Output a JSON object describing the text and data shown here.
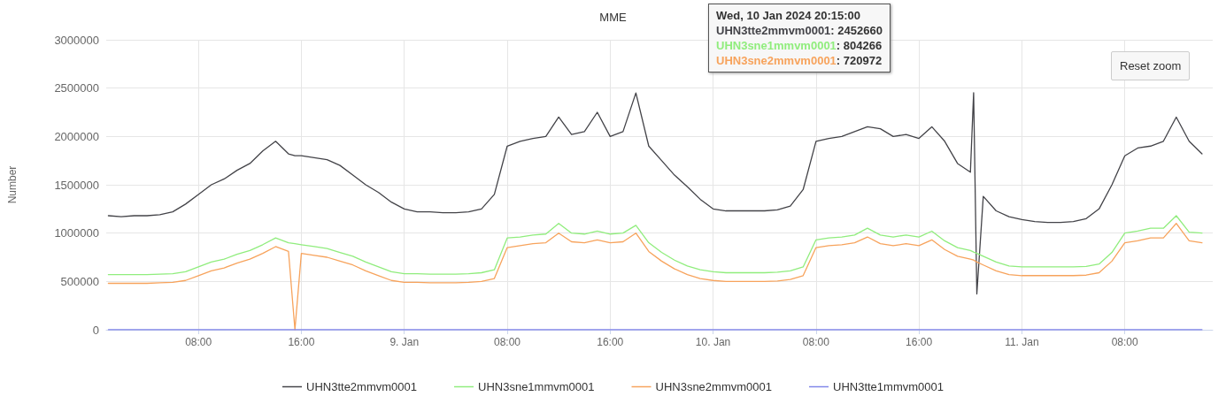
{
  "chart_data": {
    "type": "line",
    "title": "MME",
    "ylabel": "Number",
    "x": [
      "2024-01-08T01:00",
      "2024-01-08T02:00",
      "2024-01-08T03:00",
      "2024-01-08T04:00",
      "2024-01-08T05:00",
      "2024-01-08T06:00",
      "2024-01-08T07:00",
      "2024-01-08T08:00",
      "2024-01-08T09:00",
      "2024-01-08T10:00",
      "2024-01-08T11:00",
      "2024-01-08T12:00",
      "2024-01-08T13:00",
      "2024-01-08T14:00",
      "2024-01-08T15:00",
      "2024-01-08T15:30",
      "2024-01-08T16:00",
      "2024-01-08T17:00",
      "2024-01-08T18:00",
      "2024-01-08T19:00",
      "2024-01-08T20:00",
      "2024-01-08T21:00",
      "2024-01-08T22:00",
      "2024-01-08T23:00",
      "2024-01-09T00:00",
      "2024-01-09T01:00",
      "2024-01-09T02:00",
      "2024-01-09T03:00",
      "2024-01-09T04:00",
      "2024-01-09T05:00",
      "2024-01-09T06:00",
      "2024-01-09T07:00",
      "2024-01-09T08:00",
      "2024-01-09T09:00",
      "2024-01-09T10:00",
      "2024-01-09T11:00",
      "2024-01-09T12:00",
      "2024-01-09T13:00",
      "2024-01-09T14:00",
      "2024-01-09T15:00",
      "2024-01-09T16:00",
      "2024-01-09T17:00",
      "2024-01-09T18:00",
      "2024-01-09T19:00",
      "2024-01-09T20:00",
      "2024-01-09T21:00",
      "2024-01-09T22:00",
      "2024-01-09T23:00",
      "2024-01-10T00:00",
      "2024-01-10T01:00",
      "2024-01-10T02:00",
      "2024-01-10T03:00",
      "2024-01-10T04:00",
      "2024-01-10T05:00",
      "2024-01-10T06:00",
      "2024-01-10T07:00",
      "2024-01-10T08:00",
      "2024-01-10T09:00",
      "2024-01-10T10:00",
      "2024-01-10T11:00",
      "2024-01-10T12:00",
      "2024-01-10T13:00",
      "2024-01-10T14:00",
      "2024-01-10T15:00",
      "2024-01-10T16:00",
      "2024-01-10T17:00",
      "2024-01-10T18:00",
      "2024-01-10T19:00",
      "2024-01-10T20:00",
      "2024-01-10T20:15",
      "2024-01-10T20:30",
      "2024-01-10T21:00",
      "2024-01-10T22:00",
      "2024-01-10T23:00",
      "2024-01-11T00:00",
      "2024-01-11T01:00",
      "2024-01-11T02:00",
      "2024-01-11T03:00",
      "2024-01-11T04:00",
      "2024-01-11T05:00",
      "2024-01-11T06:00",
      "2024-01-11T07:00",
      "2024-01-11T08:00",
      "2024-01-11T09:00",
      "2024-01-11T10:00",
      "2024-01-11T11:00",
      "2024-01-11T12:00",
      "2024-01-11T13:00",
      "2024-01-11T14:00"
    ],
    "series": [
      {
        "name": "UHN3tte2mmvm0001",
        "color": "#434348",
        "values": [
          1180000,
          1170000,
          1180000,
          1180000,
          1190000,
          1220000,
          1300000,
          1400000,
          1500000,
          1560000,
          1650000,
          1720000,
          1850000,
          1950000,
          1820000,
          1800000,
          1800000,
          1780000,
          1760000,
          1700000,
          1600000,
          1500000,
          1420000,
          1320000,
          1250000,
          1220000,
          1220000,
          1210000,
          1210000,
          1220000,
          1250000,
          1400000,
          1900000,
          1950000,
          1980000,
          2000000,
          2200000,
          2020000,
          2050000,
          2250000,
          2000000,
          2050000,
          2450000,
          1900000,
          1750000,
          1600000,
          1480000,
          1350000,
          1250000,
          1230000,
          1230000,
          1230000,
          1230000,
          1240000,
          1280000,
          1450000,
          1950000,
          1980000,
          2000000,
          2050000,
          2100000,
          2080000,
          2000000,
          2020000,
          1980000,
          2100000,
          1950000,
          1720000,
          1630000,
          2452660,
          370000,
          1380000,
          1230000,
          1170000,
          1140000,
          1120000,
          1110000,
          1110000,
          1120000,
          1150000,
          1250000,
          1500000,
          1800000,
          1880000,
          1900000,
          1950000,
          2200000,
          1950000,
          1820000
        ]
      },
      {
        "name": "UHN3sne1mmvm0001",
        "color": "#90ed7d",
        "values": [
          570000,
          570000,
          570000,
          570000,
          575000,
          580000,
          600000,
          650000,
          700000,
          730000,
          780000,
          820000,
          880000,
          950000,
          900000,
          890000,
          880000,
          860000,
          840000,
          800000,
          760000,
          700000,
          650000,
          600000,
          580000,
          580000,
          575000,
          575000,
          575000,
          580000,
          590000,
          620000,
          950000,
          960000,
          980000,
          990000,
          1100000,
          1000000,
          990000,
          1020000,
          990000,
          1000000,
          1080000,
          900000,
          800000,
          720000,
          660000,
          620000,
          600000,
          590000,
          590000,
          590000,
          590000,
          595000,
          610000,
          650000,
          930000,
          950000,
          960000,
          980000,
          1050000,
          980000,
          960000,
          980000,
          960000,
          1020000,
          920000,
          850000,
          820000,
          804266,
          790000,
          760000,
          700000,
          660000,
          650000,
          650000,
          650000,
          650000,
          650000,
          655000,
          680000,
          800000,
          1000000,
          1020000,
          1050000,
          1050000,
          1180000,
          1010000,
          1000000
        ]
      },
      {
        "name": "UHN3sne2mmvm0001",
        "color": "#f7a35c",
        "values": [
          480000,
          480000,
          480000,
          480000,
          485000,
          490000,
          510000,
          560000,
          610000,
          640000,
          690000,
          730000,
          790000,
          860000,
          810000,
          0,
          790000,
          770000,
          750000,
          710000,
          670000,
          610000,
          560000,
          510000,
          490000,
          490000,
          485000,
          485000,
          485000,
          490000,
          500000,
          530000,
          850000,
          870000,
          890000,
          900000,
          1000000,
          910000,
          900000,
          930000,
          900000,
          910000,
          1000000,
          810000,
          710000,
          630000,
          570000,
          530000,
          510000,
          500000,
          500000,
          500000,
          500000,
          505000,
          520000,
          560000,
          850000,
          870000,
          880000,
          900000,
          960000,
          890000,
          870000,
          890000,
          870000,
          930000,
          830000,
          760000,
          730000,
          720972,
          700000,
          670000,
          610000,
          570000,
          560000,
          560000,
          560000,
          560000,
          560000,
          565000,
          590000,
          710000,
          900000,
          920000,
          950000,
          950000,
          1100000,
          920000,
          900000
        ]
      },
      {
        "name": "UHN3tte1mmvm0001",
        "color": "#8085e9",
        "values": [
          0,
          0,
          0,
          0,
          0,
          0,
          0,
          0,
          0,
          0,
          0,
          0,
          0,
          0,
          0,
          0,
          0,
          0,
          0,
          0,
          0,
          0,
          0,
          0,
          0,
          0,
          0,
          0,
          0,
          0,
          0,
          0,
          0,
          0,
          0,
          0,
          0,
          0,
          0,
          0,
          0,
          0,
          0,
          0,
          0,
          0,
          0,
          0,
          0,
          0,
          0,
          0,
          0,
          0,
          0,
          0,
          0,
          0,
          0,
          0,
          0,
          0,
          0,
          0,
          0,
          0,
          0,
          0,
          0,
          0,
          0,
          0,
          0,
          0,
          0,
          0,
          0,
          0,
          0,
          0,
          0,
          0,
          0,
          0,
          0,
          0,
          0,
          0,
          0
        ]
      }
    ],
    "xlim": [
      "2024-01-08T00:50",
      "2024-01-11T14:50"
    ],
    "xticks": [
      {
        "value": "2024-01-08T08:00",
        "label": "08:00"
      },
      {
        "value": "2024-01-08T16:00",
        "label": "16:00"
      },
      {
        "value": "2024-01-09T00:00",
        "label": "9. Jan"
      },
      {
        "value": "2024-01-09T08:00",
        "label": "08:00"
      },
      {
        "value": "2024-01-09T16:00",
        "label": "16:00"
      },
      {
        "value": "2024-01-10T00:00",
        "label": "10. Jan"
      },
      {
        "value": "2024-01-10T08:00",
        "label": "08:00"
      },
      {
        "value": "2024-01-10T16:00",
        "label": "16:00"
      },
      {
        "value": "2024-01-11T00:00",
        "label": "11. Jan"
      },
      {
        "value": "2024-01-11T08:00",
        "label": "08:00"
      }
    ],
    "ylim": [
      0,
      3000000
    ],
    "yticks": [
      0,
      500000,
      1000000,
      1500000,
      2000000,
      2500000,
      3000000
    ],
    "grid": true,
    "legend": "bottom",
    "marker": "none",
    "line_style": "solid",
    "annotations": [
      "Wed, 10 Jan 2024 20:15:00",
      "UHN3tte2mmvm0001: 2452660",
      "UHN3sne1mmvm0001: 804266",
      "UHN3sne2mmvm0001: 720972",
      "Reset zoom"
    ]
  }
}
